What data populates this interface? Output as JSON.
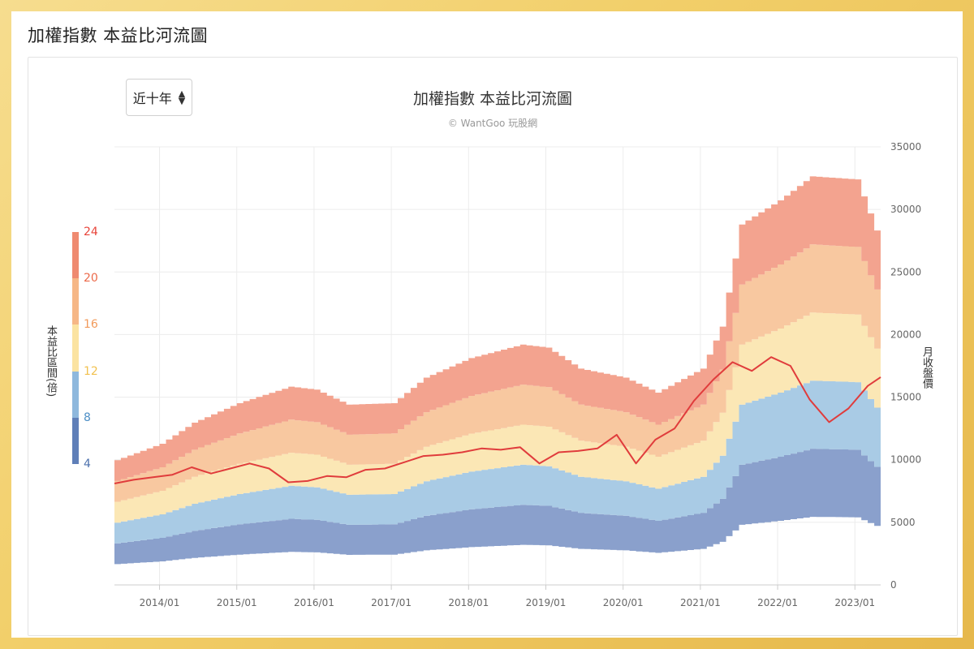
{
  "page": {
    "title": "加權指數 本益比河流圖"
  },
  "controls": {
    "range_select": "近十年",
    "range_icon": "sort-icon"
  },
  "chart_data": {
    "type": "area",
    "title": "加權指數 本益比河流圖",
    "subtitle": "© WantGoo 玩股網",
    "ylabel_left": "本益比區間(倍)",
    "ylabel_right": "月收盤價",
    "ylim": [
      0,
      35000
    ],
    "yticks": [
      "0",
      "5000",
      "10000",
      "15000",
      "20000",
      "25000",
      "30000",
      "35000"
    ],
    "xlim": [
      "2013-06",
      "2023-05"
    ],
    "xticks": [
      "2014/01",
      "2015/01",
      "2016/01",
      "2017/01",
      "2018/01",
      "2019/01",
      "2020/01",
      "2021/01",
      "2022/01",
      "2023/01"
    ],
    "grid": true,
    "pe_legend": {
      "labels": [
        "4",
        "8",
        "12",
        "16",
        "20",
        "24"
      ],
      "bands": [
        {
          "from": 4,
          "to": 8,
          "color": "#8aa0cc"
        },
        {
          "from": 8,
          "to": 12,
          "color": "#a9cbe5"
        },
        {
          "from": 12,
          "to": 16,
          "color": "#fbe7b5"
        },
        {
          "from": 16,
          "to": 20,
          "color": "#f8c8a0"
        },
        {
          "from": 20,
          "to": 24,
          "color": "#f3a38f"
        }
      ],
      "label_colors": [
        "#4d71ad",
        "#4d8fc6",
        "#f1c14f",
        "#f29a5a",
        "#ec6a4a",
        "#e8443a"
      ]
    },
    "eps_x": [
      "2013-06",
      "2014-01",
      "2014-06",
      "2015-01",
      "2015-09",
      "2016-01",
      "2016-06",
      "2017-01",
      "2017-06",
      "2018-01",
      "2018-09",
      "2019-01",
      "2019-06",
      "2020-01",
      "2020-06",
      "2021-01",
      "2021-04",
      "2021-07",
      "2022-01",
      "2022-06",
      "2023-01",
      "2023-04",
      "2023-05"
    ],
    "eps_ttm": [
      415,
      470,
      540,
      605,
      660,
      650,
      600,
      605,
      690,
      755,
      800,
      790,
      720,
      690,
      640,
      720,
      860,
      1200,
      1280,
      1360,
      1350,
      1180,
      1020
    ],
    "series": [
      {
        "name": "月收盤價",
        "color": "#e03c3c",
        "x": [
          "2013-06",
          "2013-09",
          "2013-12",
          "2014-03",
          "2014-06",
          "2014-09",
          "2014-12",
          "2015-03",
          "2015-06",
          "2015-09",
          "2015-12",
          "2016-03",
          "2016-06",
          "2016-09",
          "2016-12",
          "2017-03",
          "2017-06",
          "2017-09",
          "2017-12",
          "2018-03",
          "2018-06",
          "2018-09",
          "2018-12",
          "2019-03",
          "2019-06",
          "2019-09",
          "2019-12",
          "2020-03",
          "2020-06",
          "2020-09",
          "2020-12",
          "2021-03",
          "2021-06",
          "2021-09",
          "2021-12",
          "2022-03",
          "2022-06",
          "2022-09",
          "2022-12",
          "2023-03",
          "2023-05"
        ],
        "values": [
          8100,
          8400,
          8600,
          8800,
          9400,
          8900,
          9300,
          9700,
          9300,
          8200,
          8300,
          8700,
          8600,
          9200,
          9300,
          9800,
          10300,
          10400,
          10600,
          10900,
          10800,
          11000,
          9700,
          10600,
          10700,
          10900,
          12000,
          9700,
          11600,
          12500,
          14700,
          16400,
          17800,
          17100,
          18200,
          17500,
          14800,
          13000,
          14100,
          15900,
          16600
        ]
      }
    ]
  }
}
